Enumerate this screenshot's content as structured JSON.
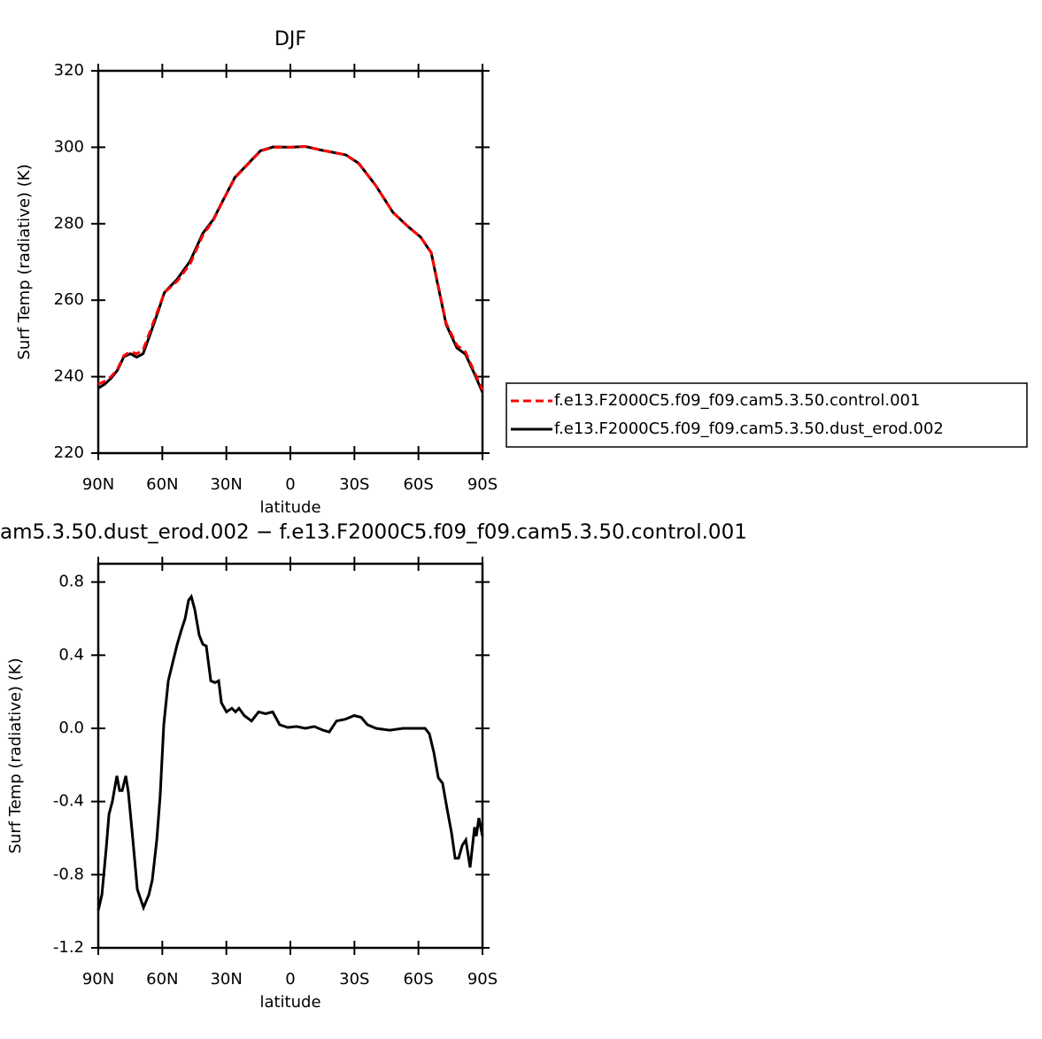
{
  "chart_data": [
    {
      "type": "line",
      "title": "DJF",
      "x_label": "latitude",
      "y_label": "Surf Temp (radiative) (K)",
      "x": [
        90,
        87,
        84,
        81,
        78,
        75,
        72,
        69,
        66,
        62,
        59,
        53,
        47,
        41,
        36,
        32,
        26,
        20,
        14,
        8,
        0,
        -7,
        -15,
        -26,
        -32,
        -40,
        -48,
        -55,
        -61,
        -66,
        -69,
        -73,
        -78,
        -82,
        -86,
        -90
      ],
      "series": [
        {
          "name": "f.e13.F2000C5.f09_f09.cam5.3.50.control.001",
          "color": "#ff0000",
          "line_style": "dashed",
          "values": [
            238,
            238.8,
            240,
            242,
            245.5,
            246.5,
            246,
            247,
            251.5,
            257.5,
            262,
            265,
            269.5,
            277,
            281,
            285.5,
            292,
            295.5,
            299,
            300,
            300,
            300.2,
            299.2,
            298,
            295.7,
            290,
            283,
            279.3,
            276.5,
            272.5,
            264.5,
            254,
            248.2,
            246.5,
            241.5,
            236.5
          ]
        },
        {
          "name": "f.e13.F2000C5.f09_f09.cam5.3.50.dust_erod.002",
          "color": "#000000",
          "line_style": "solid",
          "values": [
            237,
            238,
            239.6,
            241.7,
            245.2,
            246,
            245.1,
            246,
            250.6,
            257,
            262,
            265.5,
            270.2,
            277.5,
            281.2,
            285.6,
            292.1,
            295.6,
            299.1,
            300.1,
            300,
            300.2,
            299.2,
            298,
            295.8,
            290,
            283,
            279.3,
            276.5,
            272.4,
            264.2,
            253.6,
            247.5,
            245.9,
            241,
            235.9
          ]
        }
      ],
      "xlim": [
        90,
        -90
      ],
      "xticks": [
        {
          "value": 90,
          "label": "90N"
        },
        {
          "value": 60,
          "label": "60N"
        },
        {
          "value": 30,
          "label": "30N"
        },
        0,
        {
          "value": -30,
          "label": "30S"
        },
        {
          "value": -60,
          "label": "60S"
        },
        {
          "value": -90,
          "label": "90S"
        }
      ],
      "ylim": [
        220,
        320
      ],
      "yticks": [
        220,
        240,
        260,
        280,
        300,
        320
      ],
      "legend": "right"
    },
    {
      "type": "line",
      "title": "am5.3.50.dust_erod.002 − f.e13.F2000C5.f09_f09.cam5.3.50.control.001",
      "x_label": "latitude",
      "y_label": "Surf Temp (radiative) (K)",
      "x": [
        90,
        88.3,
        86.3,
        85,
        83.4,
        81.3,
        80,
        78.8,
        77.1,
        75.9,
        73.8,
        71.7,
        68.8,
        66.3,
        64.7,
        62.6,
        61,
        59.3,
        57.2,
        55.1,
        53,
        51,
        49.3,
        47.7,
        46.4,
        44.8,
        42.7,
        41,
        39.4,
        37.3,
        35.3,
        33.6,
        32.3,
        29.9,
        27.4,
        25.7,
        24.1,
        21.6,
        18.2,
        14.9,
        11.6,
        8.3,
        5,
        1.2,
        -2.9,
        -7,
        -11.2,
        -15.3,
        -18.2,
        -21.6,
        -25.7,
        -29.9,
        -33.2,
        -36.1,
        -40.2,
        -46.5,
        -52.7,
        -58.9,
        -63.1,
        -65.1,
        -67.2,
        -69.3,
        -71.3,
        -73.4,
        -75.5,
        -77.2,
        -78.8,
        -80.5,
        -82.2,
        -84.2,
        -86.3,
        -87.1,
        -88.3,
        -90
      ],
      "values": [
        -0.995,
        -0.91,
        -0.66,
        -0.47,
        -0.4,
        -0.26,
        -0.34,
        -0.34,
        -0.26,
        -0.35,
        -0.61,
        -0.88,
        -0.98,
        -0.91,
        -0.83,
        -0.61,
        -0.37,
        0.02,
        0.26,
        0.36,
        0.46,
        0.54,
        0.6,
        0.7,
        0.72,
        0.65,
        0.51,
        0.46,
        0.45,
        0.26,
        0.25,
        0.26,
        0.14,
        0.09,
        0.11,
        0.09,
        0.11,
        0.07,
        0.04,
        0.09,
        0.08,
        0.09,
        0.02,
        0.005,
        0.01,
        0,
        0.01,
        -0.01,
        -0.02,
        0.04,
        0.05,
        0.07,
        0.06,
        0.02,
        0,
        -0.01,
        0,
        0,
        0,
        -0.03,
        -0.13,
        -0.27,
        -0.3,
        -0.44,
        -0.57,
        -0.71,
        -0.71,
        -0.64,
        -0.61,
        -0.76,
        -0.54,
        -0.59,
        -0.49,
        -0.59
      ],
      "color": "#000000",
      "xlim": [
        90,
        -90
      ],
      "xticks": [
        {
          "value": 90,
          "label": "90N"
        },
        {
          "value": 60,
          "label": "60N"
        },
        {
          "value": 30,
          "label": "30N"
        },
        0,
        {
          "value": -30,
          "label": "30S"
        },
        {
          "value": -60,
          "label": "60S"
        },
        {
          "value": -90,
          "label": "90S"
        }
      ],
      "ylim": [
        -1.2,
        0.9
      ],
      "yticks": [
        -1.2,
        -0.8,
        -0.4,
        {
          "value": 0,
          "label": "0.0"
        },
        0.4,
        0.8
      ]
    }
  ]
}
